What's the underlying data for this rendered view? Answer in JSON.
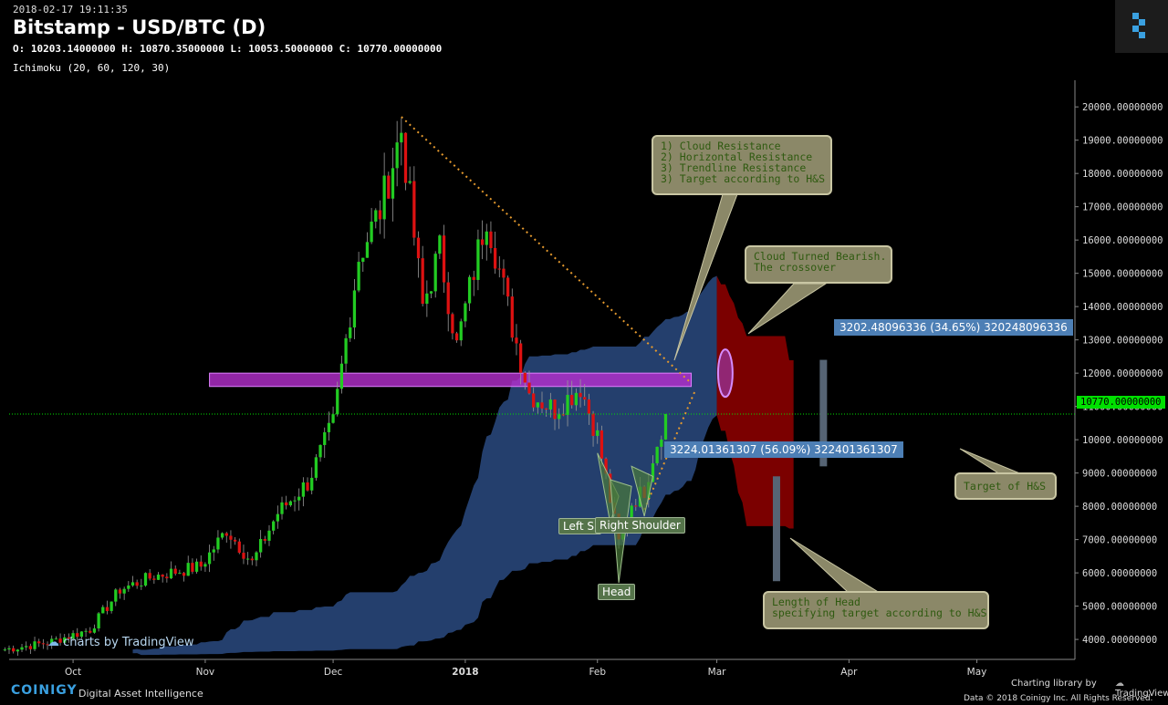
{
  "header": {
    "timestamp": "2018-02-17 19:11:35",
    "title": "Bitstamp - USD/BTC (D)",
    "ohlc": "O: 10203.14000000 H: 10870.35000000 L: 10053.50000000 C: 10770.00000000",
    "indicator": "Ichimoku (20, 60, 120, 30)"
  },
  "colors": {
    "up": "#22cc22",
    "down": "#dd1111",
    "cloud": "#2a4a80",
    "cloud_bear": "#880000",
    "resistance": "#b62fd0",
    "trend": "#e59a2e",
    "last_price": "#00e000",
    "note_bg": "#8b8868"
  },
  "chart_data": {
    "type": "candlestick",
    "title": "Bitstamp - USD/BTC (D)",
    "x_ticks": [
      "Oct",
      "Nov",
      "Dec",
      "2018",
      "Feb",
      "Mar",
      "Apr",
      "May"
    ],
    "y_ticks": [
      "4000.00000000",
      "5000.00000000",
      "6000.00000000",
      "7000.00000000",
      "8000.00000000",
      "9000.00000000",
      "10000.00000000",
      "11000.00000000",
      "12000.00000000",
      "13000.00000000",
      "14000.00000000",
      "15000.00000000",
      "16000.00000000",
      "17000.00000000",
      "18000.00000000",
      "19000.00000000",
      "20000.00000000"
    ],
    "ylim": [
      3400,
      20800
    ],
    "last_price": 10770,
    "last_price_label": "10770.00000000",
    "resistance_zone": [
      11600,
      12000
    ],
    "price_path": [
      [
        "2017-09-15",
        3700
      ],
      [
        "2017-09-25",
        3900
      ],
      [
        "2017-10-05",
        4300
      ],
      [
        "2017-10-12",
        5500
      ],
      [
        "2017-10-20",
        5900
      ],
      [
        "2017-10-31",
        6200
      ],
      [
        "2017-11-06",
        7300
      ],
      [
        "2017-11-12",
        6300
      ],
      [
        "2017-11-18",
        7800
      ],
      [
        "2017-11-25",
        8700
      ],
      [
        "2017-12-01",
        10500
      ],
      [
        "2017-12-07",
        15500
      ],
      [
        "2017-12-12",
        16900
      ],
      [
        "2017-12-17",
        19300
      ],
      [
        "2017-12-22",
        14000
      ],
      [
        "2017-12-26",
        15700
      ],
      [
        "2017-12-30",
        12800
      ],
      [
        "2018-01-06",
        16800
      ],
      [
        "2018-01-12",
        13400
      ],
      [
        "2018-01-16",
        11400
      ],
      [
        "2018-01-22",
        10900
      ],
      [
        "2018-01-28",
        11600
      ],
      [
        "2018-02-01",
        10100
      ],
      [
        "2018-02-04",
        8200
      ],
      [
        "2018-02-06",
        6900
      ],
      [
        "2018-02-09",
        8100
      ],
      [
        "2018-02-12",
        8500
      ],
      [
        "2018-02-14",
        9500
      ],
      [
        "2018-02-17",
        10770
      ]
    ]
  },
  "notes": {
    "resistance": "1) Cloud Resistance\n2) Horizontal Resistance\n3) Trendline Resistance\n3) Target according to H&S",
    "bearish": "Cloud Turned Bearish.\nThe crossover",
    "target": "Target of H&S",
    "head_length": "Length of Head\nspecifying target according to H&S"
  },
  "measures": {
    "upper": "3202.48096336 (34.65%) 320248096336",
    "lower": "3224.01361307 (56.09%) 322401361307"
  },
  "pattern_labels": {
    "left": "Left Sl",
    "right": "Right Shoulder",
    "head": "Head"
  },
  "footer": {
    "watermark": "charts by TradingView",
    "brand": "COINIGY",
    "tagline": "Digital Asset Intelligence",
    "lib": "Charting library by",
    "tv": "TradingView",
    "copyright": "Data © 2018  Coinigy Inc. All Rights Reserved."
  }
}
